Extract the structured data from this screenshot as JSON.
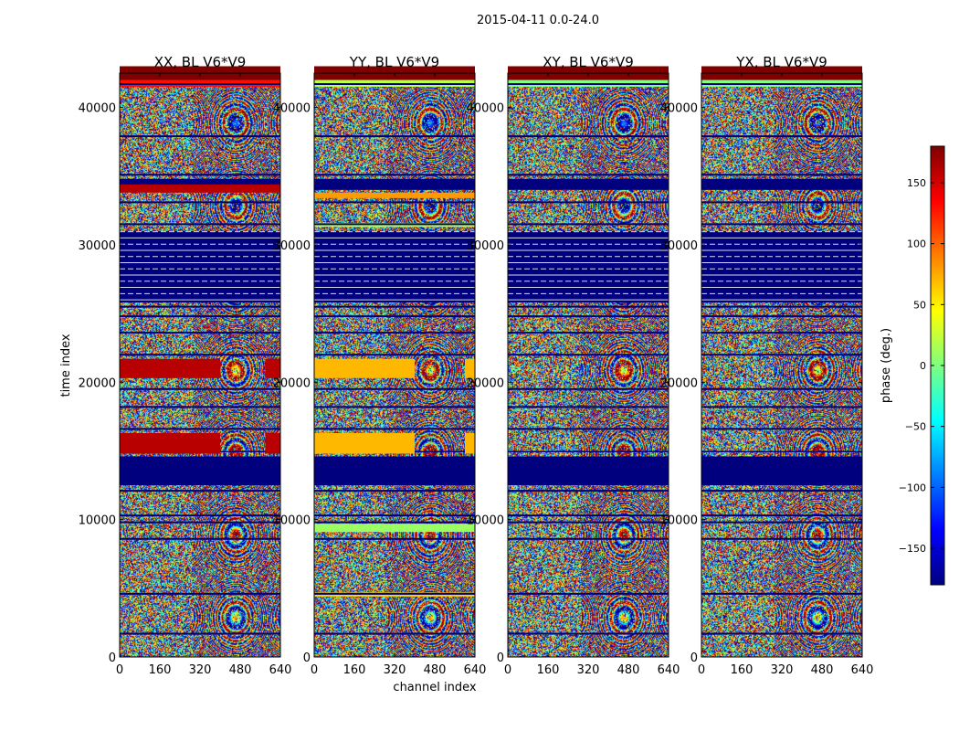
{
  "suptitle": "2015-04-11 0.0-24.0",
  "colormap": {
    "name": "jet",
    "stops": [
      "#00007f",
      "#0000ff",
      "#007fff",
      "#00ffff",
      "#7fff7f",
      "#ffff00",
      "#ff7f00",
      "#ff0000",
      "#7f0000"
    ]
  },
  "chart_data": {
    "type": "heatmap",
    "panels": [
      {
        "title": "XX, BL V6*V9",
        "bands": [
          {
            "from": 42000,
            "to": 43000,
            "phase": 180
          },
          {
            "from": 41500,
            "to": 42000,
            "phase": 130
          },
          {
            "from": 33800,
            "to": 34400,
            "phase": 160
          },
          {
            "from": 20300,
            "to": 21700,
            "phase": 160,
            "xmax": 400
          },
          {
            "from": 20300,
            "to": 21700,
            "phase": 160,
            "xmin": 580
          },
          {
            "from": 14800,
            "to": 16300,
            "phase": 160,
            "xmax": 400
          },
          {
            "from": 14800,
            "to": 16300,
            "phase": 160,
            "xmin": 580
          }
        ]
      },
      {
        "title": "YY, BL V6*V9",
        "bands": [
          {
            "from": 42000,
            "to": 43000,
            "phase": 180
          },
          {
            "from": 41500,
            "to": 42000,
            "phase": 20
          },
          {
            "from": 33400,
            "to": 33800,
            "phase": 80
          },
          {
            "from": 31300,
            "to": 31600,
            "phase": 20
          },
          {
            "from": 20300,
            "to": 21700,
            "phase": 70,
            "xmax": 400
          },
          {
            "from": 20300,
            "to": 21700,
            "phase": 70,
            "xmin": 600
          },
          {
            "from": 14800,
            "to": 16300,
            "phase": 70,
            "xmax": 400
          },
          {
            "from": 14800,
            "to": 16300,
            "phase": 70,
            "xmin": 600
          },
          {
            "from": 9100,
            "to": 9700,
            "phase": 10
          },
          {
            "from": 4400,
            "to": 4700,
            "phase": 60
          }
        ]
      },
      {
        "title": "XY, BL V6*V9",
        "bands": [
          {
            "from": 42000,
            "to": 43000,
            "phase": 180
          },
          {
            "from": 41500,
            "to": 42000,
            "phase": 0
          }
        ]
      },
      {
        "title": "YX, BL V6*V9",
        "bands": [
          {
            "from": 42000,
            "to": 43000,
            "phase": 180
          },
          {
            "from": 41500,
            "to": 42000,
            "phase": 0
          }
        ]
      }
    ],
    "blocked_time_ranges": [
      [
        34000,
        34800
      ],
      [
        25800,
        31000
      ],
      [
        12500,
        14600
      ],
      [
        14900,
        15000
      ]
    ],
    "blocked_phase": -180,
    "flag_lines": [
      41700,
      37900,
      35100,
      33100,
      31500,
      25500,
      24800,
      23600,
      22000,
      19500,
      18200,
      16600,
      12100,
      10300,
      9800,
      8600,
      4600,
      1700
    ],
    "x_ticks": [
      0,
      160,
      320,
      480,
      640
    ],
    "x_tick_labels": [
      "0",
      "160",
      "320",
      "480",
      "640"
    ],
    "y_ticks": [
      0,
      10000,
      20000,
      30000,
      40000
    ],
    "y_tick_labels": [
      "0",
      "10000",
      "20000",
      "30000",
      "40000"
    ],
    "xlim": [
      0,
      640
    ],
    "ylim": [
      0,
      42500
    ],
    "xlabel": "channel index",
    "ylabel": "time index",
    "colorbar": {
      "label": "phase (deg.)",
      "range": [
        -180,
        180
      ],
      "ticks": [
        150,
        100,
        50,
        0,
        -50,
        -100,
        -150
      ],
      "tick_labels": [
        "150",
        "100",
        "50",
        "0",
        "−50",
        "−100",
        "−150"
      ]
    }
  }
}
